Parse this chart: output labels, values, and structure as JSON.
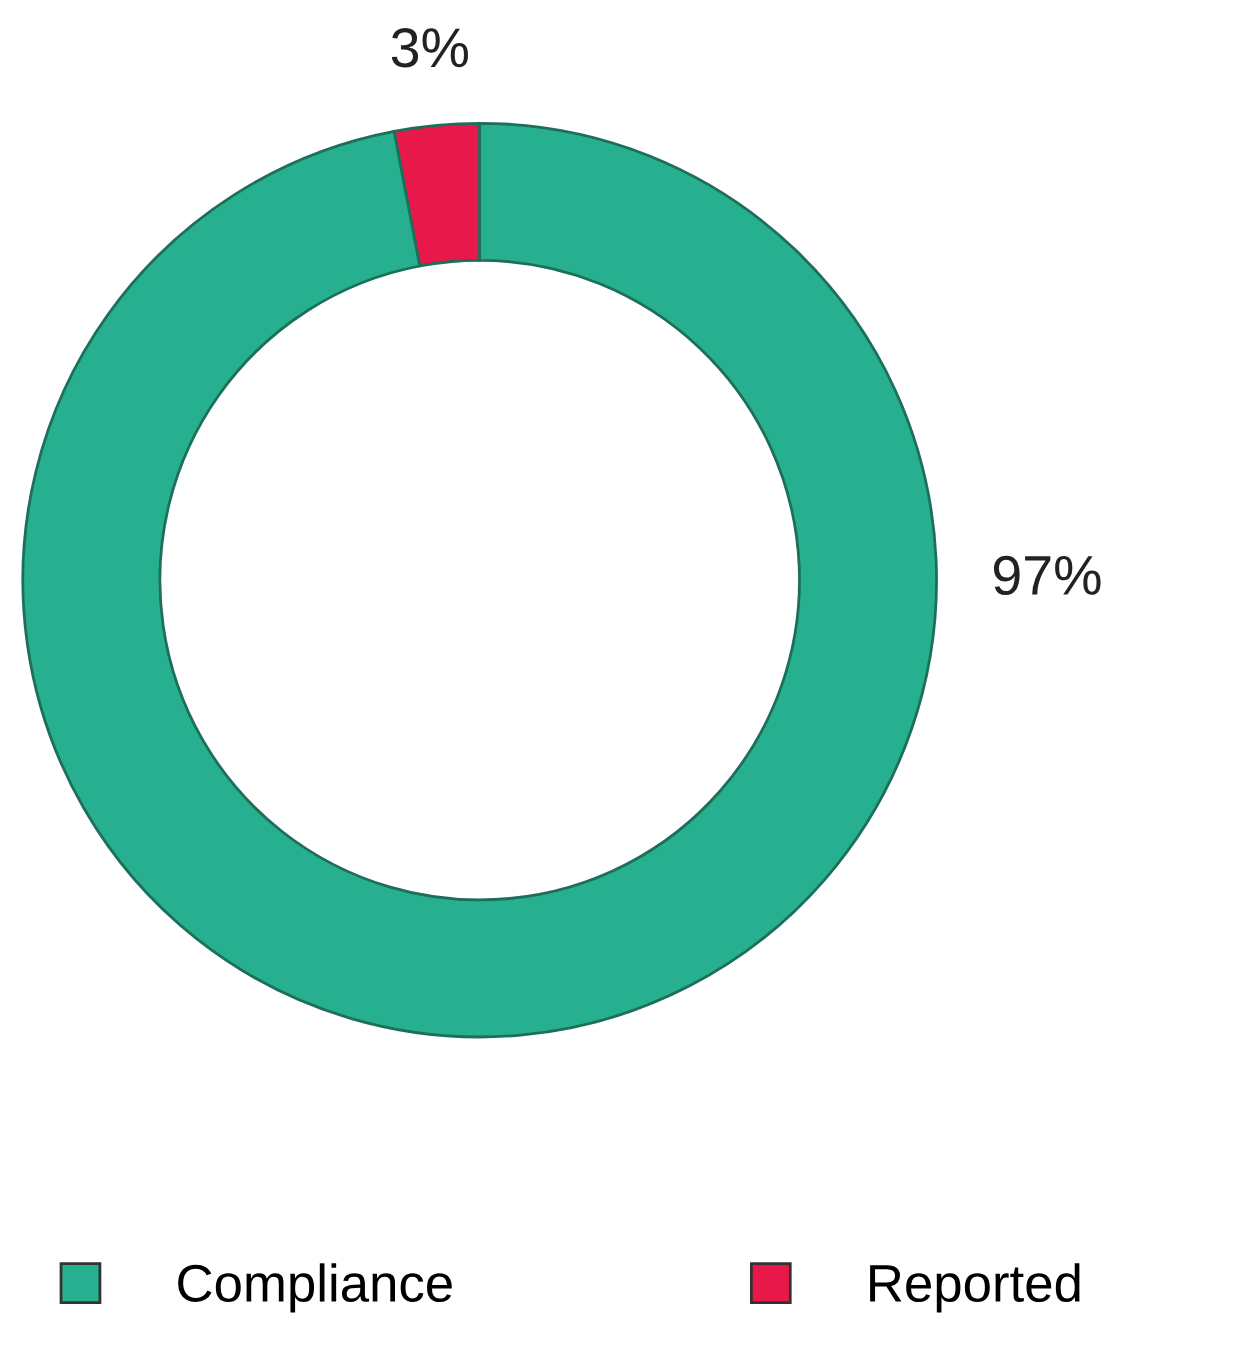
{
  "chart_data": {
    "type": "donut",
    "categories": [
      "Reported",
      "Compliance"
    ],
    "values": [
      3,
      97
    ],
    "colors": [
      "#e8194a",
      "#26b08f"
    ],
    "value_labels": [
      "3%",
      "97%"
    ],
    "legend": "bottom"
  }
}
